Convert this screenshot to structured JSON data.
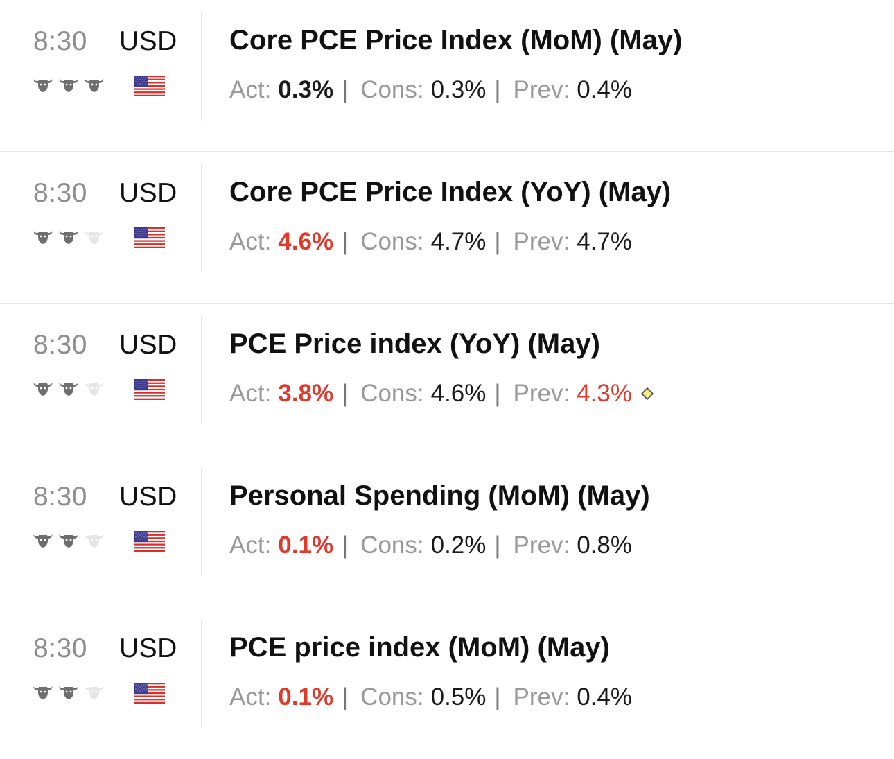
{
  "events": [
    {
      "time": "8:30",
      "currency": "USD",
      "importance": 3,
      "flag": "us-flag-icon",
      "title": "Core PCE Price Index (MoM) (May)",
      "act_label": "Act:",
      "act_value": "0.3%",
      "act_color": "#1a1a1a",
      "cons_label": "Cons:",
      "cons_value": "0.3%",
      "prev_label": "Prev:",
      "prev_value": "0.4%",
      "prev_color": "#1a1a1a",
      "revised": false
    },
    {
      "time": "8:30",
      "currency": "USD",
      "importance": 2,
      "flag": "us-flag-icon",
      "title": "Core PCE Price Index (YoY) (May)",
      "act_label": "Act:",
      "act_value": "4.6%",
      "act_color": "#e03a2c",
      "cons_label": "Cons:",
      "cons_value": "4.7%",
      "prev_label": "Prev:",
      "prev_value": "4.7%",
      "prev_color": "#1a1a1a",
      "revised": false
    },
    {
      "time": "8:30",
      "currency": "USD",
      "importance": 2,
      "flag": "us-flag-icon",
      "title": "PCE Price index (YoY) (May)",
      "act_label": "Act:",
      "act_value": "3.8%",
      "act_color": "#e03a2c",
      "cons_label": "Cons:",
      "cons_value": "4.6%",
      "prev_label": "Prev:",
      "prev_value": "4.3%",
      "prev_color": "#e03a2c",
      "revised": true
    },
    {
      "time": "8:30",
      "currency": "USD",
      "importance": 2,
      "flag": "us-flag-icon",
      "title": "Personal Spending (MoM) (May)",
      "act_label": "Act:",
      "act_value": "0.1%",
      "act_color": "#e03a2c",
      "cons_label": "Cons:",
      "cons_value": "0.2%",
      "prev_label": "Prev:",
      "prev_value": "0.8%",
      "prev_color": "#1a1a1a",
      "revised": false
    },
    {
      "time": "8:30",
      "currency": "USD",
      "importance": 2,
      "flag": "us-flag-icon",
      "title": "PCE price index (MoM) (May)",
      "act_label": "Act:",
      "act_value": "0.1%",
      "act_color": "#e03a2c",
      "cons_label": "Cons:",
      "cons_value": "0.5%",
      "prev_label": "Prev:",
      "prev_value": "0.4%",
      "prev_color": "#1a1a1a",
      "revised": false
    }
  ],
  "separator": "|",
  "colors": {
    "bull_active": "#6e6e6e",
    "bull_inactive": "#e6e6e6",
    "negative": "#e03a2c",
    "revised_marker": "#f2ea8c"
  }
}
